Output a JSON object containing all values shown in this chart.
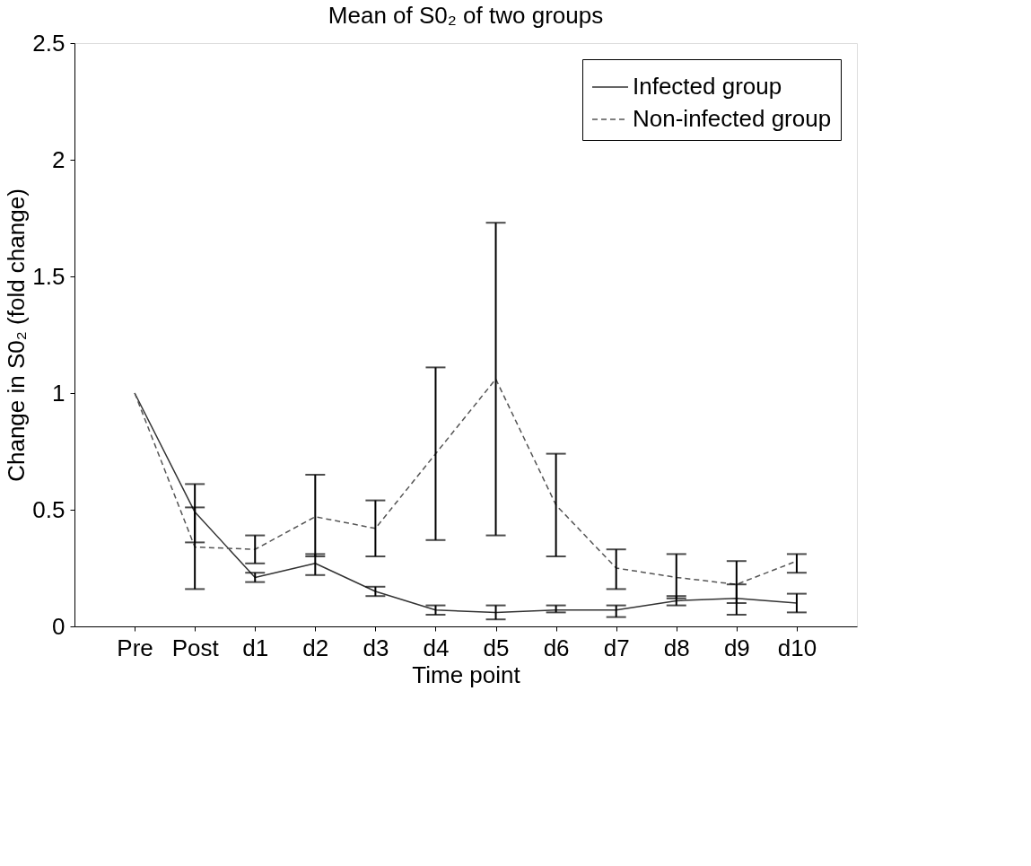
{
  "chart_data": {
    "type": "line",
    "title": "Mean of S0₂ of two groups",
    "xlabel": "Time point",
    "ylabel": "Change in S0₂ (fold change)",
    "categories": [
      "Pre",
      "Post",
      "d1",
      "d2",
      "d3",
      "d4",
      "d5",
      "d6",
      "d7",
      "d8",
      "d9",
      "d10"
    ],
    "series": [
      {
        "name": "Infected group",
        "color": "#333333",
        "line_style": "solid",
        "values": [
          1.0,
          0.49,
          0.21,
          0.27,
          0.15,
          0.07,
          0.06,
          0.07,
          0.07,
          0.11,
          0.12,
          0.1
        ],
        "errors": [
          null,
          [
            0.36,
            0.61
          ],
          [
            0.19,
            0.23
          ],
          [
            0.22,
            0.31
          ],
          [
            0.13,
            0.17
          ],
          [
            0.05,
            0.09
          ],
          [
            0.03,
            0.09
          ],
          [
            0.06,
            0.09
          ],
          [
            0.04,
            0.09
          ],
          [
            0.09,
            0.13
          ],
          [
            0.05,
            0.18
          ],
          [
            0.06,
            0.14
          ]
        ]
      },
      {
        "name": "Non-infected group",
        "color": "#555555",
        "line_style": "dashed",
        "values": [
          1.0,
          0.34,
          0.33,
          0.47,
          0.42,
          0.74,
          1.06,
          0.52,
          0.25,
          0.21,
          0.18,
          0.28
        ],
        "errors": [
          null,
          [
            0.16,
            0.51
          ],
          [
            0.27,
            0.39
          ],
          [
            0.3,
            0.65
          ],
          [
            0.3,
            0.54
          ],
          [
            0.37,
            1.11
          ],
          [
            0.39,
            1.73
          ],
          [
            0.3,
            0.74
          ],
          [
            0.16,
            0.33
          ],
          [
            0.12,
            0.31
          ],
          [
            0.1,
            0.28
          ],
          [
            0.23,
            0.31
          ]
        ]
      }
    ],
    "ylim": [
      0,
      2.5
    ],
    "yticks": [
      0,
      0.5,
      1,
      1.5,
      2,
      2.5
    ],
    "grid": false,
    "legend": "top right"
  }
}
